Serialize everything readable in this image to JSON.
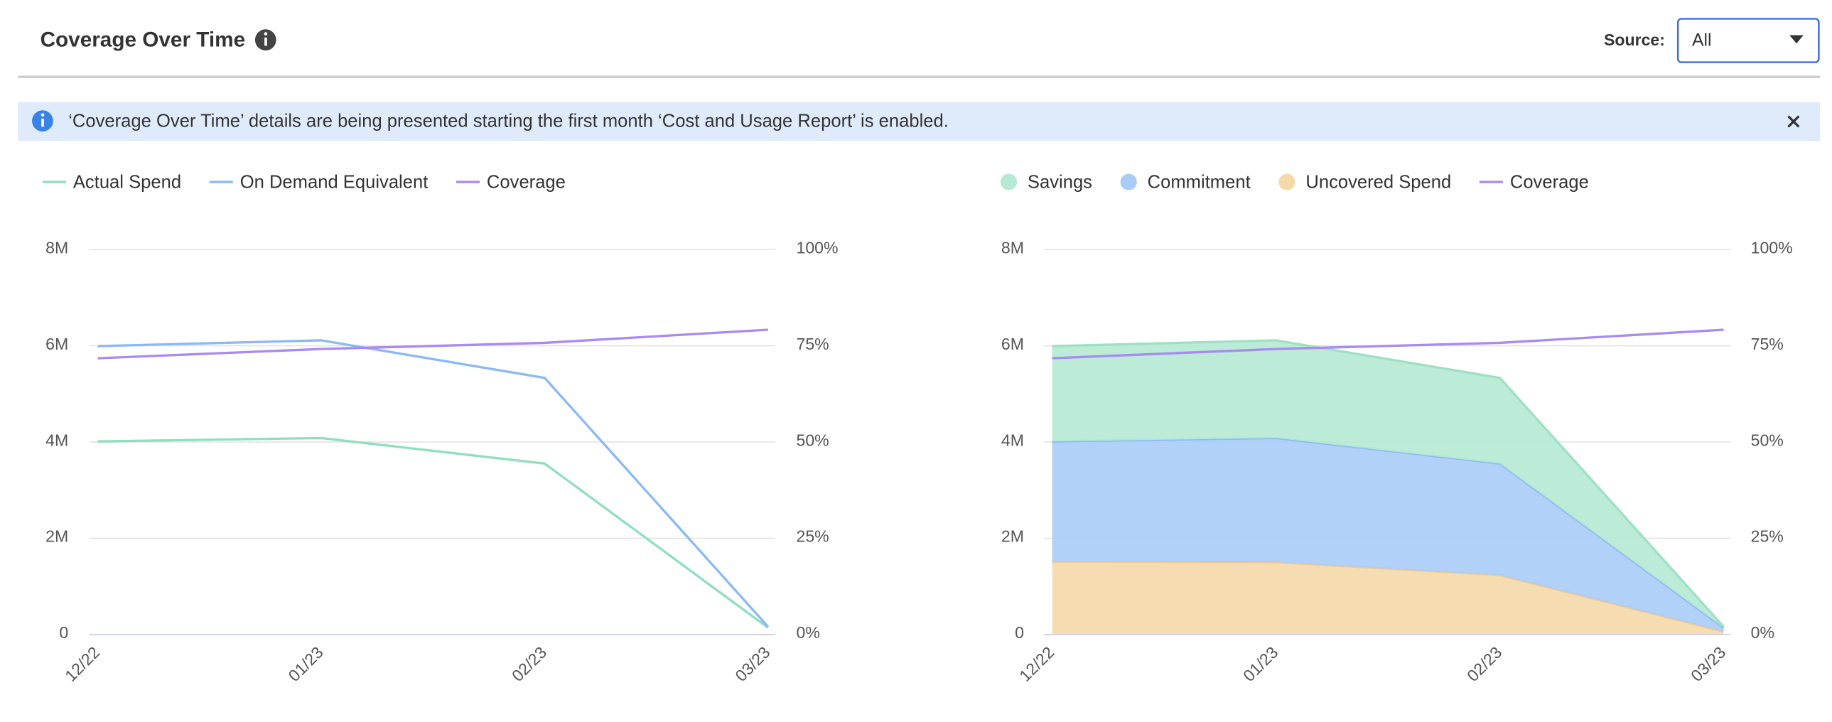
{
  "header": {
    "title": "Coverage Over Time",
    "source_label": "Source:",
    "source_value": "All"
  },
  "banner": {
    "text": "‘Coverage Over Time’ details are being presented starting the first month ‘Cost and Usage Report’ is enabled."
  },
  "chart_data": [
    {
      "type": "line",
      "categories": [
        "12/22",
        "01/23",
        "02/23",
        "03/23"
      ],
      "series": [
        {
          "name": "Actual Spend",
          "color": "#8fdfbf",
          "values": [
            4000000,
            4070000,
            3540000,
            130000
          ]
        },
        {
          "name": "On Demand Equivalent",
          "color": "#8ab9f5",
          "values": [
            5980000,
            6100000,
            5320000,
            150000
          ]
        },
        {
          "name": "Coverage",
          "color": "#a98af0",
          "axis": "y2",
          "values": [
            71.6,
            74,
            75.6,
            79
          ]
        }
      ],
      "ylim": [
        0,
        8000000
      ],
      "yticks": [
        0,
        {
          "value": 2000000,
          "label": "2M"
        },
        {
          "value": 4000000,
          "label": "4M"
        },
        {
          "value": 6000000,
          "label": "6M"
        },
        {
          "value": 8000000,
          "label": "8M"
        }
      ],
      "y2lim": [
        0,
        100
      ],
      "y2ticks": [
        {
          "value": 0,
          "label": "0%"
        },
        {
          "value": 25,
          "label": "25%"
        },
        {
          "value": 50,
          "label": "50%"
        },
        {
          "value": 75,
          "label": "75%"
        },
        {
          "value": 100,
          "label": "100%"
        }
      ],
      "grid": true,
      "legend": "top-left"
    },
    {
      "type": "stacked_area",
      "categories": [
        "12/22",
        "01/23",
        "02/23",
        "03/23"
      ],
      "series": [
        {
          "name": "Savings",
          "color": "#b5e9d3",
          "values": [
            1980000,
            2030000,
            1780000,
            20000
          ]
        },
        {
          "name": "Commitment",
          "color": "#a9ccf7",
          "values": [
            2500000,
            2580000,
            2320000,
            80000
          ]
        },
        {
          "name": "Uncovered Spend",
          "color": "#f5d9a8",
          "values": [
            1500000,
            1490000,
            1220000,
            50000
          ]
        },
        {
          "name": "Coverage",
          "color": "#a98af0",
          "axis": "y2",
          "values": [
            71.6,
            74,
            75.6,
            79
          ]
        }
      ],
      "ylim": [
        0,
        8000000
      ],
      "yticks": [
        0,
        {
          "value": 2000000,
          "label": "2M"
        },
        {
          "value": 4000000,
          "label": "4M"
        },
        {
          "value": 6000000,
          "label": "6M"
        },
        {
          "value": 8000000,
          "label": "8M"
        }
      ],
      "y2lim": [
        0,
        100
      ],
      "y2ticks": [
        {
          "value": 0,
          "label": "0%"
        },
        {
          "value": 25,
          "label": "25%"
        },
        {
          "value": 50,
          "label": "50%"
        },
        {
          "value": 75,
          "label": "75%"
        },
        {
          "value": 100,
          "label": "100%"
        }
      ],
      "grid": true,
      "legend": "top-left"
    }
  ]
}
